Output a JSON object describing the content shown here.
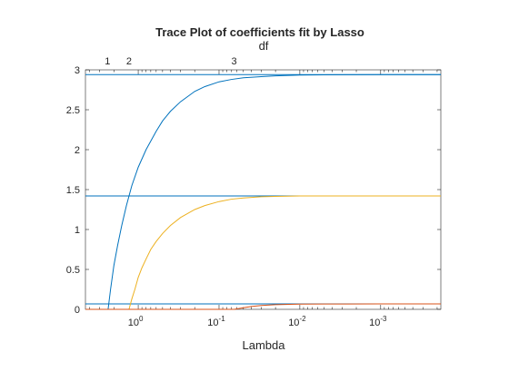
{
  "chart_data": {
    "type": "line",
    "title": "Trace Plot of coefficients fit by Lasso",
    "xlabel": "Lambda",
    "top_axis_label": "df",
    "x_scale": "log",
    "x_reversed": true,
    "xlim": [
      4.5,
      0.00018
    ],
    "ylim": [
      0,
      3
    ],
    "y_ticks": [
      0,
      0.5,
      1,
      1.5,
      2,
      2.5,
      3
    ],
    "y_tick_labels": [
      "0",
      "0.5",
      "1",
      "1.5",
      "2",
      "2.5",
      "3"
    ],
    "x_ticks": [
      {
        "value": 1,
        "base": "10",
        "exp": "0"
      },
      {
        "value": 0.1,
        "base": "10",
        "exp": "-1"
      },
      {
        "value": 0.01,
        "base": "10",
        "exp": "-2"
      },
      {
        "value": 0.001,
        "base": "10",
        "exp": "-3"
      }
    ],
    "df_ticks": [
      {
        "lambda": 2.4,
        "label": "1"
      },
      {
        "lambda": 1.3,
        "label": "2"
      },
      {
        "lambda": 0.065,
        "label": "3"
      }
    ],
    "series": [
      {
        "color": "#0072BD",
        "points": [
          [
            4.5,
            0
          ],
          [
            2.36,
            0
          ],
          [
            2.2,
            0.25
          ],
          [
            2.0,
            0.55
          ],
          [
            1.8,
            0.8
          ],
          [
            1.6,
            1.05
          ],
          [
            1.4,
            1.3
          ],
          [
            1.2,
            1.55
          ],
          [
            1.0,
            1.78
          ],
          [
            0.8,
            2.0
          ],
          [
            0.6,
            2.23
          ],
          [
            0.5,
            2.36
          ],
          [
            0.4,
            2.48
          ],
          [
            0.3,
            2.6
          ],
          [
            0.2,
            2.73
          ],
          [
            0.15,
            2.79
          ],
          [
            0.1,
            2.85
          ],
          [
            0.07,
            2.88
          ],
          [
            0.05,
            2.9
          ],
          [
            0.03,
            2.915
          ],
          [
            0.02,
            2.925
          ],
          [
            0.01,
            2.935
          ],
          [
            0.005,
            2.938
          ],
          [
            0.001,
            2.94
          ],
          [
            0.00018,
            2.94
          ]
        ]
      },
      {
        "color": "#EDB120",
        "points": [
          [
            4.5,
            0
          ],
          [
            1.3,
            0
          ],
          [
            1.2,
            0.13
          ],
          [
            1.1,
            0.25
          ],
          [
            1.0,
            0.4
          ],
          [
            0.9,
            0.52
          ],
          [
            0.8,
            0.63
          ],
          [
            0.7,
            0.75
          ],
          [
            0.6,
            0.85
          ],
          [
            0.5,
            0.95
          ],
          [
            0.4,
            1.05
          ],
          [
            0.3,
            1.15
          ],
          [
            0.2,
            1.25
          ],
          [
            0.15,
            1.3
          ],
          [
            0.1,
            1.35
          ],
          [
            0.07,
            1.38
          ],
          [
            0.05,
            1.395
          ],
          [
            0.03,
            1.41
          ],
          [
            0.02,
            1.415
          ],
          [
            0.01,
            1.42
          ],
          [
            0.005,
            1.42
          ],
          [
            0.001,
            1.42
          ],
          [
            0.00018,
            1.42
          ]
        ]
      },
      {
        "color": "#D95319",
        "points": [
          [
            4.5,
            0
          ],
          [
            0.065,
            0
          ],
          [
            0.05,
            0.02
          ],
          [
            0.04,
            0.035
          ],
          [
            0.03,
            0.048
          ],
          [
            0.02,
            0.058
          ],
          [
            0.01,
            0.065
          ],
          [
            0.005,
            0.067
          ],
          [
            0.001,
            0.068
          ],
          [
            0.00018,
            0.068
          ]
        ]
      }
    ],
    "reference_lines": {
      "color": "#0072BD",
      "values": [
        2.94,
        1.42,
        0.068
      ]
    }
  }
}
